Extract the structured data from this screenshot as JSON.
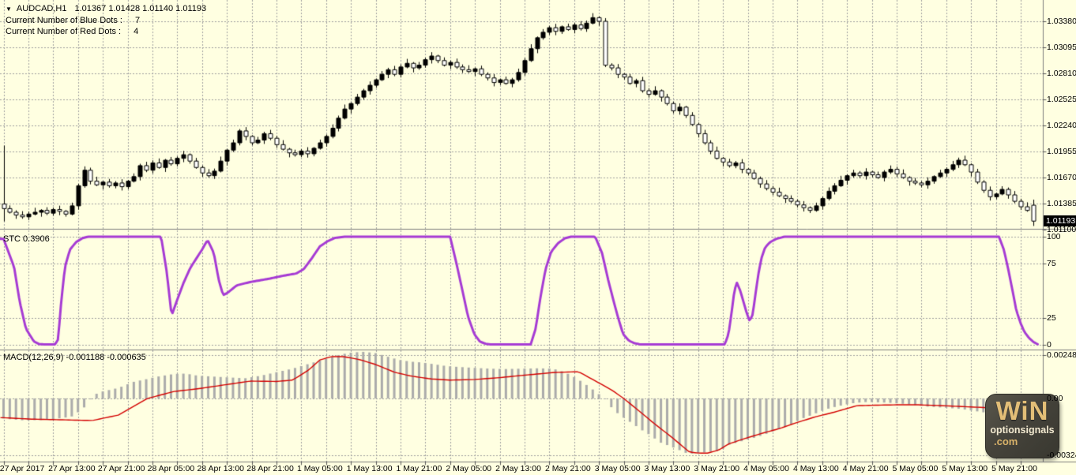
{
  "header": {
    "marker": "▼",
    "symbol": "AUDCAD,H1",
    "ohlc": "1.01367 1.01428 1.01140 1.01193",
    "blue_dots_label": "Current Number of Blue Dots :",
    "blue_dots_value": "7",
    "red_dots_label": "Current Number of Red Dots :",
    "red_dots_value": "4"
  },
  "watermark": {
    "line1": "WiN",
    "line2": "optionsignals",
    "line3": ".com"
  },
  "colors": {
    "background": "#FFFFE1",
    "grid": "#A0A0A0",
    "separator": "#808080",
    "text": "#000000",
    "candle_outline": "#000000",
    "bull_body": "#000000",
    "bear_body": "#FFFFFF",
    "stc_line": "#A63BD4",
    "macd_histogram": "#ABABAB",
    "signal_line": "#D40000",
    "badge_bg": "#000000",
    "badge_text": "#FFFFFF"
  },
  "time_axis": {
    "labels": [
      "27 Apr 2017",
      "27 Apr 13:00",
      "27 Apr 21:00",
      "28 Apr 05:00",
      "28 Apr 13:00",
      "28 Apr 21:00",
      "1 May 05:00",
      "1 May 13:00",
      "1 May 21:00",
      "2 May 05:00",
      "2 May 13:00",
      "2 May 21:00",
      "3 May 05:00",
      "3 May 13:00",
      "3 May 21:00",
      "4 May 05:00",
      "4 May 13:00",
      "4 May 21:00",
      "5 May 05:00",
      "5 May 13:00",
      "5 May 21:00"
    ]
  },
  "chart_data": [
    {
      "type": "candlestick",
      "name": "price",
      "symbol": "AUDCAD",
      "timeframe": "H1",
      "open": 1.01367,
      "high": 1.01428,
      "low": 1.0114,
      "close": 1.01193,
      "current_price_label": "1.01193",
      "axis_ticks": [
        "1.03380",
        "1.03095",
        "1.02810",
        "1.02525",
        "1.02240",
        "1.01955",
        "1.01670",
        "1.01385",
        "1.01100"
      ],
      "first_candle": {
        "open": 1.0138,
        "high": 1.0202,
        "low": 1.0119
      },
      "last_candle": {
        "open": 1.01367,
        "high": 1.01428,
        "low": 1.0114
      },
      "wick_up": [
        2,
        5,
        3,
        6,
        4,
        7,
        2,
        5,
        3,
        6
      ],
      "wick_dn": [
        4,
        2,
        6,
        3,
        5,
        2,
        7,
        3,
        4,
        6
      ],
      "wick_unit": 7e-05,
      "closes": [
        1.0133,
        1.0129,
        1.0126,
        1.0124,
        1.0127,
        1.0129,
        1.0131,
        1.0128,
        1.0132,
        1.013,
        1.0127,
        1.0136,
        1.0158,
        1.0175,
        1.0163,
        1.0159,
        1.0162,
        1.0158,
        1.0161,
        1.0157,
        1.0163,
        1.0168,
        1.018,
        1.0175,
        1.0183,
        1.0178,
        1.0186,
        1.0182,
        1.0188,
        1.0192,
        1.0185,
        1.0178,
        1.0172,
        1.0169,
        1.0174,
        1.0185,
        1.0197,
        1.0205,
        1.0218,
        1.0212,
        1.0205,
        1.0208,
        1.0215,
        1.021,
        1.0203,
        1.0198,
        1.0194,
        1.0192,
        1.0196,
        1.0193,
        1.0199,
        1.0205,
        1.0212,
        1.0221,
        1.0232,
        1.0242,
        1.0248,
        1.0255,
        1.0262,
        1.0268,
        1.0274,
        1.028,
        1.0285,
        1.028,
        1.0288,
        1.0292,
        1.0287,
        1.029,
        1.0296,
        1.03,
        1.0295,
        1.029,
        1.0293,
        1.0288,
        1.0285,
        1.0283,
        1.0286,
        1.028,
        1.0276,
        1.0271,
        1.0274,
        1.027,
        1.0274,
        1.0282,
        1.0295,
        1.0308,
        1.032,
        1.0326,
        1.0331,
        1.0327,
        1.0332,
        1.0329,
        1.0334,
        1.033,
        1.0336,
        1.0342,
        1.0338,
        1.029,
        1.0287,
        1.028,
        1.0277,
        1.027,
        1.0273,
        1.0262,
        1.0258,
        1.0262,
        1.0255,
        1.0248,
        1.024,
        1.0244,
        1.0235,
        1.0225,
        1.0215,
        1.0205,
        1.0196,
        1.0188,
        1.0184,
        1.018,
        1.0183,
        1.0176,
        1.0172,
        1.0166,
        1.016,
        1.0155,
        1.0151,
        1.0147,
        1.0144,
        1.0141,
        1.0137,
        1.0134,
        1.0131,
        1.0136,
        1.0144,
        1.0152,
        1.0158,
        1.0164,
        1.0169,
        1.0172,
        1.0169,
        1.0173,
        1.017,
        1.0167,
        1.0173,
        1.0176,
        1.0171,
        1.0167,
        1.0163,
        1.0161,
        1.0159,
        1.0163,
        1.0168,
        1.0172,
        1.0176,
        1.0181,
        1.0186,
        1.0181,
        1.0173,
        1.0162,
        1.0153,
        1.0146,
        1.0149,
        1.0154,
        1.0148,
        1.0141,
        1.0135,
        1.0131,
        1.01193
      ]
    },
    {
      "type": "line",
      "name": "STC",
      "label": "STC 0.3906",
      "current_value": 0.3906,
      "range": [
        0,
        100
      ],
      "ticks": [
        "100",
        "75",
        "25",
        "0"
      ],
      "anchors": [
        [
          0,
          98
        ],
        [
          1.7,
          72
        ],
        [
          2.6,
          40
        ],
        [
          3.6,
          15
        ],
        [
          4.9,
          3
        ],
        [
          5.8,
          0.5
        ],
        [
          8.3,
          0.3
        ],
        [
          8.8,
          5
        ],
        [
          9.3,
          40
        ],
        [
          9.9,
          72
        ],
        [
          10.7,
          88
        ],
        [
          11.7,
          95
        ],
        [
          12.7,
          98.6
        ],
        [
          13.6,
          100
        ],
        [
          25.4,
          100
        ],
        [
          26.3,
          68
        ],
        [
          27.1,
          27
        ],
        [
          27.9,
          40
        ],
        [
          29,
          57
        ],
        [
          30.1,
          71
        ],
        [
          31.1,
          80
        ],
        [
          32,
          88
        ],
        [
          32.9,
          97
        ],
        [
          33.9,
          85
        ],
        [
          34.7,
          60
        ],
        [
          35.4,
          46
        ],
        [
          36.1,
          48
        ],
        [
          37.6,
          55
        ],
        [
          39.7,
          58
        ],
        [
          42.7,
          61
        ],
        [
          45.2,
          64
        ],
        [
          47.2,
          66
        ],
        [
          48.4,
          70
        ],
        [
          49.7,
          80
        ],
        [
          51,
          91
        ],
        [
          52.3,
          96
        ],
        [
          53.5,
          99
        ],
        [
          55.1,
          100
        ],
        [
          72,
          100
        ],
        [
          73,
          76
        ],
        [
          74,
          50
        ],
        [
          74.9,
          26
        ],
        [
          75.9,
          10
        ],
        [
          76.8,
          3
        ],
        [
          77.7,
          1
        ],
        [
          78.5,
          0.4
        ],
        [
          85,
          0.4
        ],
        [
          85.8,
          15
        ],
        [
          86.6,
          45
        ],
        [
          87.4,
          70
        ],
        [
          88.3,
          86
        ],
        [
          89.4,
          94
        ],
        [
          90.5,
          98.5
        ],
        [
          91.5,
          100
        ],
        [
          95.4,
          100
        ],
        [
          96.5,
          85
        ],
        [
          97.5,
          60
        ],
        [
          98.3,
          42
        ],
        [
          99.1,
          25
        ],
        [
          99.9,
          10
        ],
        [
          100.8,
          4
        ],
        [
          101.7,
          1.5
        ],
        [
          102.7,
          0.4
        ],
        [
          116.3,
          0.4
        ],
        [
          116.9,
          10
        ],
        [
          117.4,
          30
        ],
        [
          117.8,
          48
        ],
        [
          118.2,
          58
        ],
        [
          118.8,
          50
        ],
        [
          119.3,
          40
        ],
        [
          119.8,
          30
        ],
        [
          120.3,
          22
        ],
        [
          120.8,
          28
        ],
        [
          121.2,
          45
        ],
        [
          121.7,
          65
        ],
        [
          122.2,
          80
        ],
        [
          122.8,
          90
        ],
        [
          123.6,
          95
        ],
        [
          124.6,
          98
        ],
        [
          125.9,
          100
        ],
        [
          160.5,
          100
        ],
        [
          161.3,
          88
        ],
        [
          162,
          70
        ],
        [
          162.7,
          50
        ],
        [
          163.3,
          32
        ],
        [
          164,
          20
        ],
        [
          164.6,
          12
        ],
        [
          165.4,
          6
        ],
        [
          166.1,
          2.5
        ],
        [
          166.8,
          0.39
        ]
      ]
    },
    {
      "type": "macd",
      "name": "MACD",
      "label": "MACD(12,26,9) -0.001188 -0.000635",
      "macd_value": -0.001188,
      "signal_value": -0.000635,
      "ticks": [
        "0.002484",
        "0.00",
        "-0.003243"
      ],
      "histogram_anchors": [
        [
          0,
          -0.00115
        ],
        [
          3.2,
          -0.00125
        ],
        [
          7,
          -0.00122
        ],
        [
          10.9,
          -0.00105
        ],
        [
          12.8,
          -0.0006
        ],
        [
          13.7,
          -0.0002
        ],
        [
          14.5,
          0.0002
        ],
        [
          16,
          0.0004
        ],
        [
          18.5,
          0.0006
        ],
        [
          21,
          0.00095
        ],
        [
          23,
          0.0011
        ],
        [
          24.9,
          0.00125
        ],
        [
          27.5,
          0.0014
        ],
        [
          29.4,
          0.00142
        ],
        [
          31.3,
          0.0013
        ],
        [
          33.8,
          0.00125
        ],
        [
          36.4,
          0.0012
        ],
        [
          38.9,
          0.00115
        ],
        [
          41.5,
          0.0013
        ],
        [
          44,
          0.0015
        ],
        [
          46.6,
          0.0017
        ],
        [
          48.5,
          0.0019
        ],
        [
          50.4,
          0.0021
        ],
        [
          52.3,
          0.0023
        ],
        [
          54.2,
          0.0025
        ],
        [
          56.1,
          0.00262
        ],
        [
          58,
          0.00266
        ],
        [
          59.9,
          0.0026
        ],
        [
          61.8,
          0.0024
        ],
        [
          63.8,
          0.0022
        ],
        [
          65.7,
          0.0021
        ],
        [
          67.6,
          0.00205
        ],
        [
          69.5,
          0.00195
        ],
        [
          71.4,
          0.00185
        ],
        [
          73.3,
          0.0018
        ],
        [
          75.8,
          0.00175
        ],
        [
          78.4,
          0.0017
        ],
        [
          80.9,
          0.00168
        ],
        [
          83.5,
          0.0017
        ],
        [
          86,
          0.00172
        ],
        [
          88.6,
          0.0017
        ],
        [
          90.5,
          0.0015
        ],
        [
          92.4,
          0.00115
        ],
        [
          94.3,
          0.0007
        ],
        [
          95.8,
          0.0003
        ],
        [
          96.9,
          0
        ],
        [
          98.4,
          -0.00068
        ],
        [
          100,
          -0.0011
        ],
        [
          101.3,
          -0.0014
        ],
        [
          102.9,
          -0.0018
        ],
        [
          104.3,
          -0.0021
        ],
        [
          105.8,
          -0.0025
        ],
        [
          107.3,
          -0.0027
        ],
        [
          108.7,
          -0.0029
        ],
        [
          109.9,
          -0.0031
        ],
        [
          111.1,
          -0.00315
        ],
        [
          112.4,
          -0.0031
        ],
        [
          113.7,
          -0.00305
        ],
        [
          115,
          -0.003
        ],
        [
          116.2,
          -0.00285
        ],
        [
          116.5,
          -0.0027
        ],
        [
          117.9,
          -0.00255
        ],
        [
          119.4,
          -0.0024
        ],
        [
          121,
          -0.00225
        ],
        [
          122.4,
          -0.0021
        ],
        [
          123.9,
          -0.0019
        ],
        [
          125.4,
          -0.0017
        ],
        [
          126.8,
          -0.0015
        ],
        [
          128.4,
          -0.0012
        ],
        [
          129.9,
          -0.001
        ],
        [
          131.3,
          -0.0008
        ],
        [
          132.8,
          -0.0006
        ],
        [
          134.4,
          -0.00045
        ],
        [
          135.8,
          -0.00035
        ],
        [
          137.3,
          -0.00025
        ],
        [
          139.2,
          -0.0002
        ],
        [
          141.1,
          -0.00022
        ],
        [
          143,
          -0.00025
        ],
        [
          144.9,
          -0.0003
        ],
        [
          146.3,
          -0.00035
        ],
        [
          147.7,
          -0.0004
        ],
        [
          148.6,
          -0.00045
        ],
        [
          150.6,
          -0.0005
        ],
        [
          152.5,
          -0.00055
        ],
        [
          154.4,
          -0.0006
        ],
        [
          156.3,
          -0.0007
        ],
        [
          158.2,
          -0.0008
        ],
        [
          160.1,
          -0.0009
        ],
        [
          162,
          -0.001
        ],
        [
          163.9,
          -0.0011
        ],
        [
          166,
          -0.001188
        ]
      ],
      "signal_anchors": [
        [
          0,
          -0.0011
        ],
        [
          4.5,
          -0.00118
        ],
        [
          9.6,
          -0.00122
        ],
        [
          14.3,
          -0.00126
        ],
        [
          18.5,
          -0.00095
        ],
        [
          23.2,
          0
        ],
        [
          27.5,
          0.0004
        ],
        [
          31.3,
          0.00055
        ],
        [
          35.5,
          0.00077
        ],
        [
          39.8,
          0.00099
        ],
        [
          44,
          0.00097
        ],
        [
          46.6,
          0.00105
        ],
        [
          49.1,
          0.0016
        ],
        [
          51,
          0.0022
        ],
        [
          52.9,
          0.00239
        ],
        [
          54.8,
          0.00239
        ],
        [
          57.4,
          0.00222
        ],
        [
          59.9,
          0.00195
        ],
        [
          63.1,
          0.00149
        ],
        [
          65.7,
          0.00128
        ],
        [
          68.8,
          0.00112
        ],
        [
          72,
          0.00105
        ],
        [
          75.8,
          0.00108
        ],
        [
          79.7,
          0.00118
        ],
        [
          83.5,
          0.00131
        ],
        [
          88.6,
          0.00148
        ],
        [
          92.7,
          0.00153
        ],
        [
          96.2,
          0.00085
        ],
        [
          98.2,
          0.00045
        ],
        [
          100,
          0
        ],
        [
          102.6,
          -0.00075
        ],
        [
          104.8,
          -0.0014
        ],
        [
          107.7,
          -0.0022
        ],
        [
          110.6,
          -0.00306
        ],
        [
          112.2,
          -0.00312
        ],
        [
          113.5,
          -0.00312
        ],
        [
          115.3,
          -0.00295
        ],
        [
          116.9,
          -0.0026
        ],
        [
          119.4,
          -0.0023
        ],
        [
          122.6,
          -0.00196
        ],
        [
          125.2,
          -0.00171
        ],
        [
          127.7,
          -0.0014
        ],
        [
          130.9,
          -0.00105
        ],
        [
          134.1,
          -0.00077
        ],
        [
          137.6,
          -0.00041
        ],
        [
          141.1,
          -0.00038
        ],
        [
          144.4,
          -0.00036
        ],
        [
          147.2,
          -0.00036
        ],
        [
          150.6,
          -0.0004
        ],
        [
          154.4,
          -0.00046
        ],
        [
          158.2,
          -0.00052
        ],
        [
          162,
          -0.00058
        ],
        [
          166,
          -0.000635
        ]
      ]
    }
  ]
}
